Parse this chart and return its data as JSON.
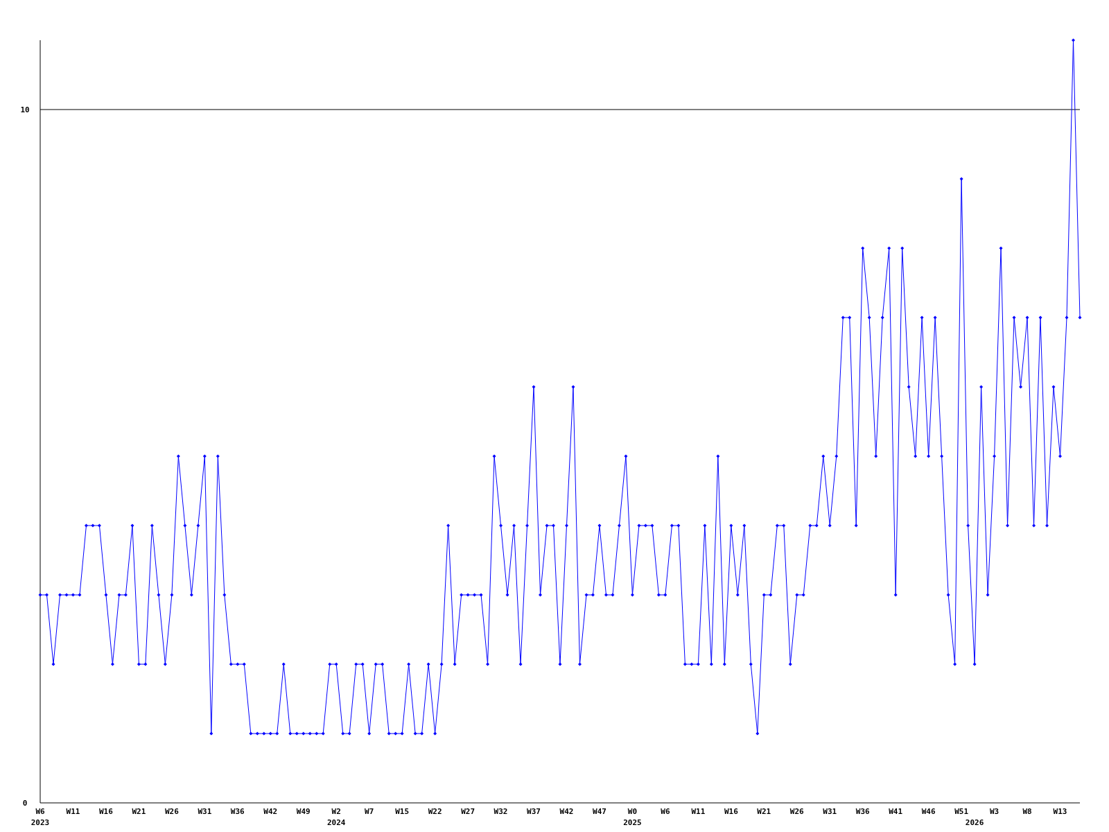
{
  "chart_data": {
    "type": "line",
    "categories": [
      "W6\n2023",
      null,
      null,
      null,
      null,
      "W11",
      null,
      null,
      null,
      null,
      "W16",
      null,
      null,
      null,
      null,
      "W21",
      null,
      null,
      null,
      null,
      "W26",
      null,
      null,
      null,
      null,
      "W31",
      null,
      null,
      null,
      null,
      "W36",
      null,
      null,
      null,
      null,
      "W42",
      null,
      null,
      null,
      null,
      "W49",
      null,
      null,
      null,
      null,
      "W2\n2024",
      null,
      null,
      null,
      null,
      "W7",
      null,
      null,
      null,
      null,
      "W15",
      null,
      null,
      null,
      null,
      "W22",
      null,
      null,
      null,
      null,
      "W27",
      null,
      null,
      null,
      null,
      "W32",
      null,
      null,
      null,
      null,
      "W37",
      null,
      null,
      null,
      null,
      "W42",
      null,
      null,
      null,
      null,
      "W47",
      null,
      null,
      null,
      null,
      "W0\n2025",
      null,
      null,
      null,
      null,
      "W6",
      null,
      null,
      null,
      null,
      "W11",
      null,
      null,
      null,
      null,
      "W16",
      null,
      null,
      null,
      null,
      "W21",
      null,
      null,
      null,
      null,
      "W26",
      null,
      null,
      null,
      null,
      "W31",
      null,
      null,
      null,
      null,
      "W36",
      null,
      null,
      null,
      null,
      "W41",
      null,
      null,
      null,
      null,
      "W46",
      null,
      null,
      null,
      null,
      "W51",
      null,
      "\n2026",
      null,
      null,
      "W3",
      null,
      null,
      null,
      null,
      "W8",
      null,
      null,
      null,
      null,
      "W13",
      null,
      null,
      null
    ],
    "series": [
      {
        "color": "#0000ff",
        "values": [
          3,
          3,
          2,
          3,
          3,
          3,
          3,
          4,
          4,
          4,
          3,
          2,
          3,
          3,
          4,
          2,
          2,
          4,
          3,
          2,
          3,
          5,
          4,
          3,
          4,
          5,
          1,
          5,
          3,
          2,
          2,
          2,
          1,
          1,
          1,
          1,
          1,
          2,
          1,
          1,
          1,
          1,
          1,
          1,
          2,
          2,
          1,
          1,
          2,
          2,
          1,
          2,
          2,
          1,
          1,
          1,
          2,
          1,
          1,
          2,
          1,
          2,
          4,
          2,
          3,
          3,
          3,
          3,
          2,
          5,
          4,
          3,
          4,
          2,
          4,
          6,
          3,
          4,
          4,
          2,
          4,
          6,
          2,
          3,
          3,
          4,
          3,
          3,
          4,
          5,
          3,
          4,
          4,
          4,
          3,
          3,
          4,
          4,
          2,
          2,
          2,
          4,
          2,
          5,
          2,
          4,
          3,
          4,
          2,
          1,
          3,
          3,
          4,
          4,
          2,
          3,
          3,
          4,
          4,
          5,
          4,
          5,
          7,
          7,
          4,
          8,
          7,
          5,
          7,
          8,
          3,
          8,
          6,
          5,
          7,
          5,
          7,
          5,
          3,
          2,
          9,
          4,
          2,
          6,
          3,
          5,
          8,
          4,
          7,
          6,
          7,
          4,
          7,
          4,
          6,
          5,
          7,
          11,
          7
        ]
      }
    ],
    "ylim": [
      0,
      11
    ],
    "yticks": [
      0,
      10
    ],
    "grid": "y",
    "marker": "diamond",
    "line_style": "solid"
  }
}
